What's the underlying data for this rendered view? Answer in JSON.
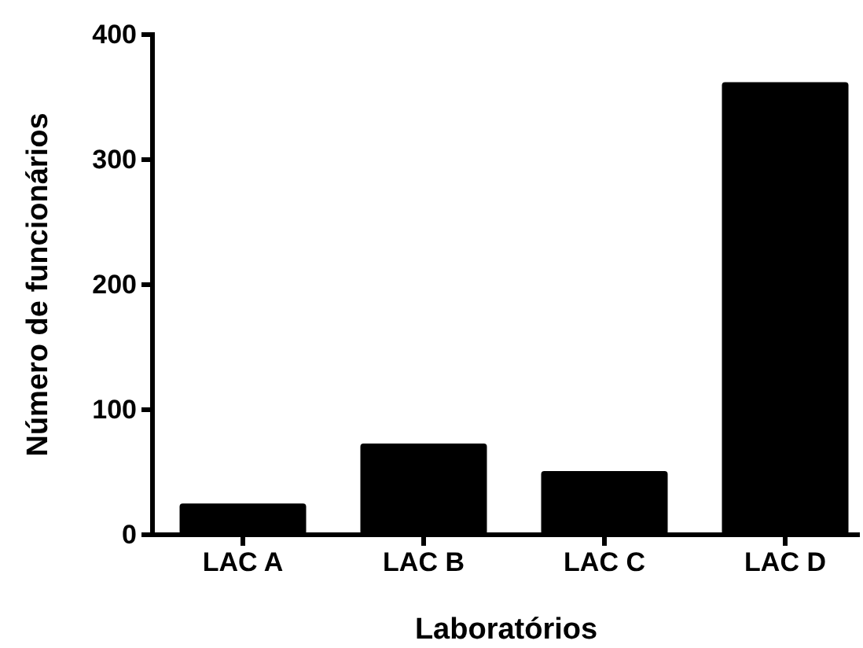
{
  "chart_data": {
    "type": "bar",
    "xlabel": "Laboratórios",
    "ylabel": "Número de funcionários",
    "categories": [
      "LAC A",
      "LAC B",
      "LAC C",
      "LAC D"
    ],
    "values": [
      25,
      73,
      51,
      362
    ],
    "color": "#000000",
    "ylim": [
      0,
      400
    ],
    "yticks": [
      0,
      100,
      200,
      300,
      400
    ],
    "grid": false
  }
}
